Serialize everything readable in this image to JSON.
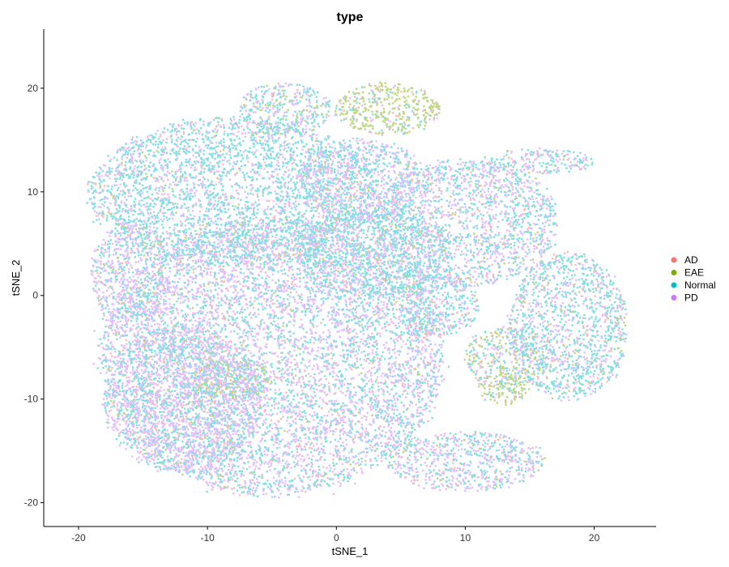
{
  "chart_data": {
    "type": "scatter",
    "title": "type",
    "xlabel": "tSNE_1",
    "ylabel": "tSNE_2",
    "xlim": [
      -22.7,
      24.8
    ],
    "ylim": [
      -22.3,
      25.7
    ],
    "x_ticks": [
      -20,
      -10,
      0,
      10,
      20
    ],
    "y_ticks": [
      -20,
      -10,
      0,
      10,
      20
    ],
    "grid": false,
    "legend_position": "right",
    "series": [
      {
        "name": "AD",
        "color": "#F8766D"
      },
      {
        "name": "EAE",
        "color": "#7CAE00"
      },
      {
        "name": "Normal",
        "color": "#00BFC4"
      },
      {
        "name": "PD",
        "color": "#C77CFF"
      }
    ],
    "clusters": [
      {
        "cx": -5,
        "cy": -6,
        "rx": 13,
        "ry": 13,
        "weights": [
          0.05,
          0.03,
          0.4,
          0.52
        ]
      },
      {
        "cx": -12,
        "cy": -10,
        "rx": 6,
        "ry": 7,
        "weights": [
          0.05,
          0.05,
          0.35,
          0.55
        ]
      },
      {
        "cx": -8,
        "cy": 10,
        "rx": 11,
        "ry": 7,
        "weights": [
          0.04,
          0.03,
          0.63,
          0.3
        ]
      },
      {
        "cx": 2,
        "cy": 11,
        "rx": 5,
        "ry": 4,
        "weights": [
          0.05,
          0.05,
          0.4,
          0.5
        ]
      },
      {
        "cx": 10,
        "cy": 7,
        "rx": 7,
        "ry": 6,
        "weights": [
          0.05,
          0.05,
          0.45,
          0.45
        ]
      },
      {
        "cx": 18,
        "cy": -3,
        "rx": 4.5,
        "ry": 7,
        "weights": [
          0.04,
          0.05,
          0.58,
          0.33
        ]
      },
      {
        "cx": 10,
        "cy": -16,
        "rx": 6,
        "ry": 2.8,
        "weights": [
          0.05,
          0.05,
          0.4,
          0.5
        ]
      },
      {
        "cx": 4,
        "cy": 18,
        "rx": 4,
        "ry": 2.5,
        "weights": [
          0.04,
          0.72,
          0.12,
          0.12
        ]
      },
      {
        "cx": -4,
        "cy": 18,
        "rx": 3.5,
        "ry": 2.5,
        "weights": [
          0.05,
          0.1,
          0.55,
          0.3
        ]
      },
      {
        "cx": 16,
        "cy": 13,
        "rx": 4,
        "ry": 1.2,
        "weights": [
          0.05,
          0.05,
          0.5,
          0.4
        ]
      },
      {
        "cx": 3,
        "cy": 4,
        "rx": 6,
        "ry": 4,
        "weights": [
          0.05,
          0.05,
          0.6,
          0.3
        ]
      },
      {
        "cx": 13,
        "cy": -6,
        "rx": 3,
        "ry": 3,
        "weights": [
          0.04,
          0.36,
          0.3,
          0.3
        ]
      },
      {
        "cx": 13,
        "cy": -9,
        "rx": 2,
        "ry": 1.5,
        "weights": [
          0.05,
          0.7,
          0.15,
          0.1
        ]
      },
      {
        "cx": -8,
        "cy": -8,
        "rx": 3,
        "ry": 2,
        "weights": [
          0.05,
          0.35,
          0.3,
          0.3
        ]
      },
      {
        "cx": -16,
        "cy": 2,
        "rx": 3,
        "ry": 5,
        "weights": [
          0.05,
          0.05,
          0.35,
          0.55
        ]
      },
      {
        "cx": 8,
        "cy": -1,
        "rx": 3,
        "ry": 3,
        "weights": [
          0.05,
          0.05,
          0.55,
          0.35
        ]
      }
    ]
  }
}
